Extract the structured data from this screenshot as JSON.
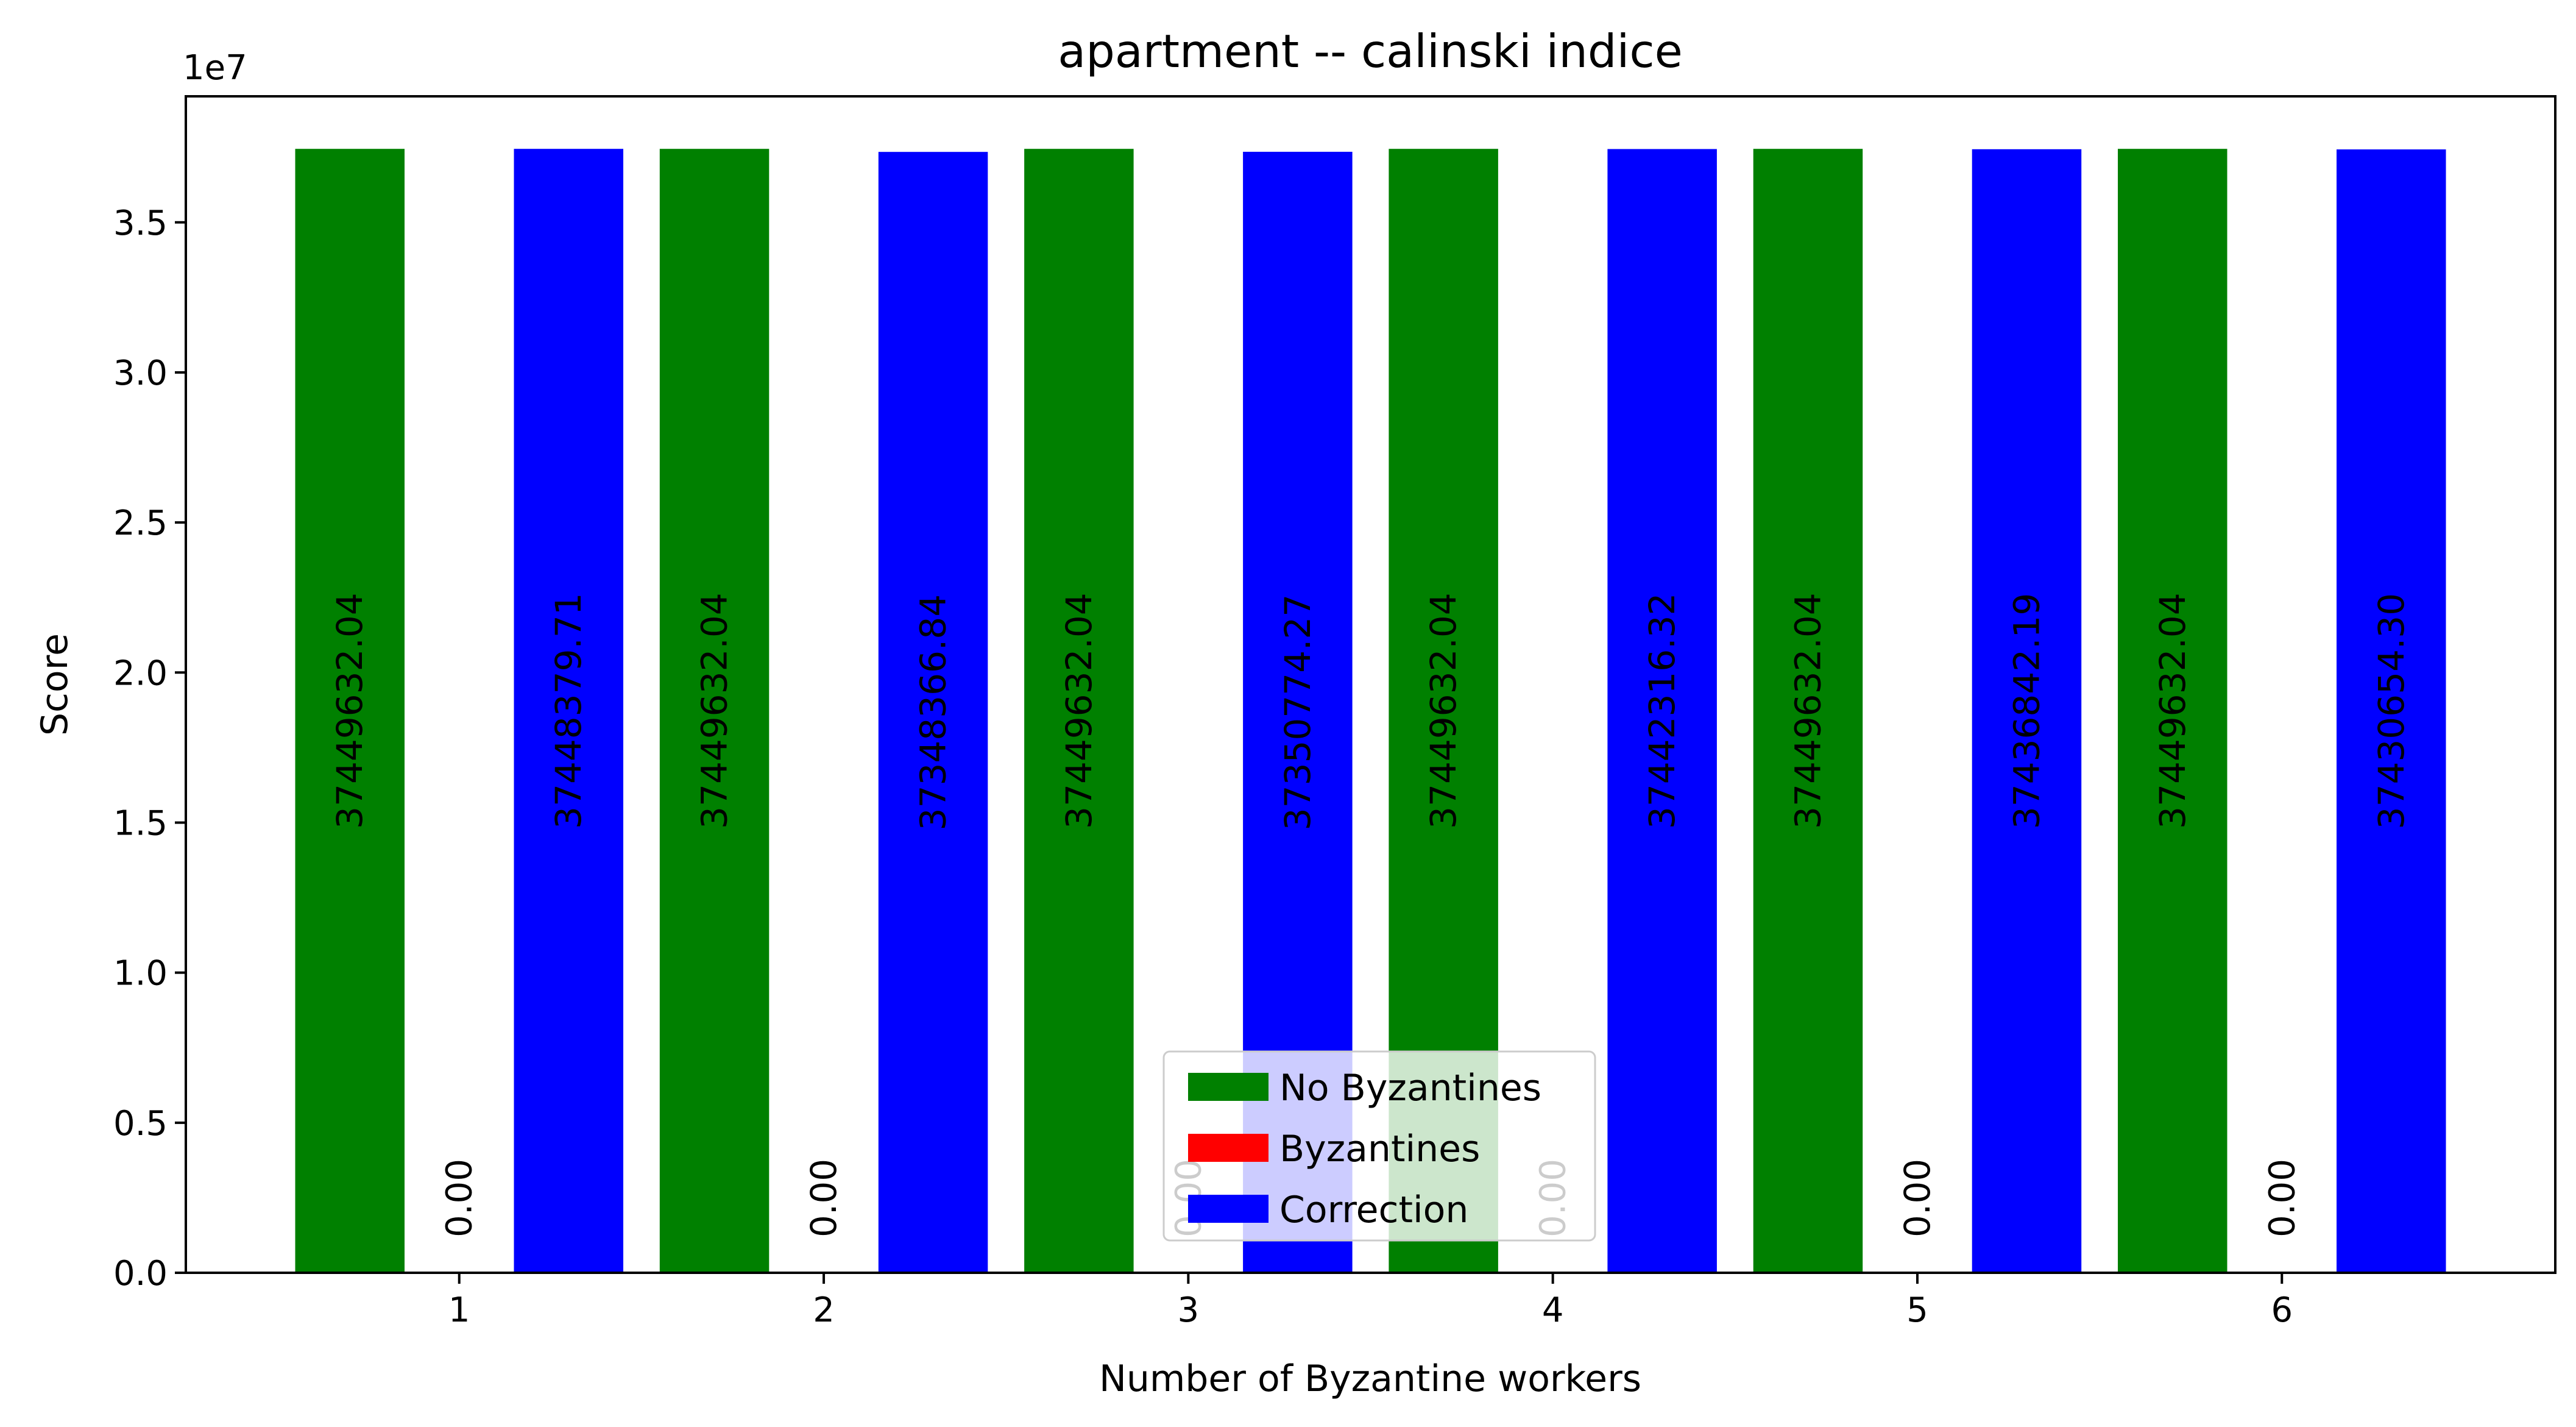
{
  "chart_data": {
    "type": "bar",
    "title": "apartment -- calinski indice",
    "xlabel": "Number of Byzantine workers",
    "ylabel": "Score",
    "y_offset_label": "1e7",
    "x_range": [
      0.25,
      6.75
    ],
    "y_range": [
      0,
      39200000
    ],
    "x_ticks": [
      1,
      2,
      3,
      4,
      5,
      6
    ],
    "x_tick_labels": [
      "1",
      "2",
      "3",
      "4",
      "5",
      "6"
    ],
    "y_ticks": [
      0,
      5000000,
      10000000,
      15000000,
      20000000,
      25000000,
      30000000,
      35000000
    ],
    "y_tick_labels": [
      "0.0",
      "0.5",
      "1.0",
      "1.5",
      "2.0",
      "2.5",
      "3.0",
      "3.5"
    ],
    "grid": false,
    "legend_position": "bottom-center",
    "bar_width": 0.3,
    "series": [
      {
        "name": "No Byzantines",
        "color": "#008000",
        "offset": -0.3,
        "x": [
          1,
          2,
          3,
          4,
          5,
          6
        ],
        "values": [
          37449632.04,
          37449632.04,
          37449632.04,
          37449632.04,
          37449632.04,
          37449632.04
        ],
        "labels": [
          "37449632.04",
          "37449632.04",
          "37449632.04",
          "37449632.04",
          "37449632.04",
          "37449632.04"
        ]
      },
      {
        "name": "Byzantines",
        "color": "#ff0000",
        "offset": 0,
        "x": [
          1,
          2,
          3,
          4,
          5,
          6
        ],
        "values": [
          0,
          0,
          0,
          0,
          0,
          0
        ],
        "labels": [
          "0.00",
          "0.00",
          "0.00",
          "0.00",
          "0.00",
          "0.00"
        ]
      },
      {
        "name": "Correction",
        "color": "#0000ff",
        "offset": 0.3,
        "x": [
          1,
          2,
          3,
          4,
          5,
          6
        ],
        "values": [
          37448379.71,
          37348366.84,
          37350774.27,
          37442316.32,
          37436842.19,
          37430654.3
        ],
        "labels": [
          "37448379.71",
          "37348366.84",
          "37350774.27",
          "37442316.32",
          "37436842.19",
          "37430654.30"
        ]
      }
    ]
  }
}
